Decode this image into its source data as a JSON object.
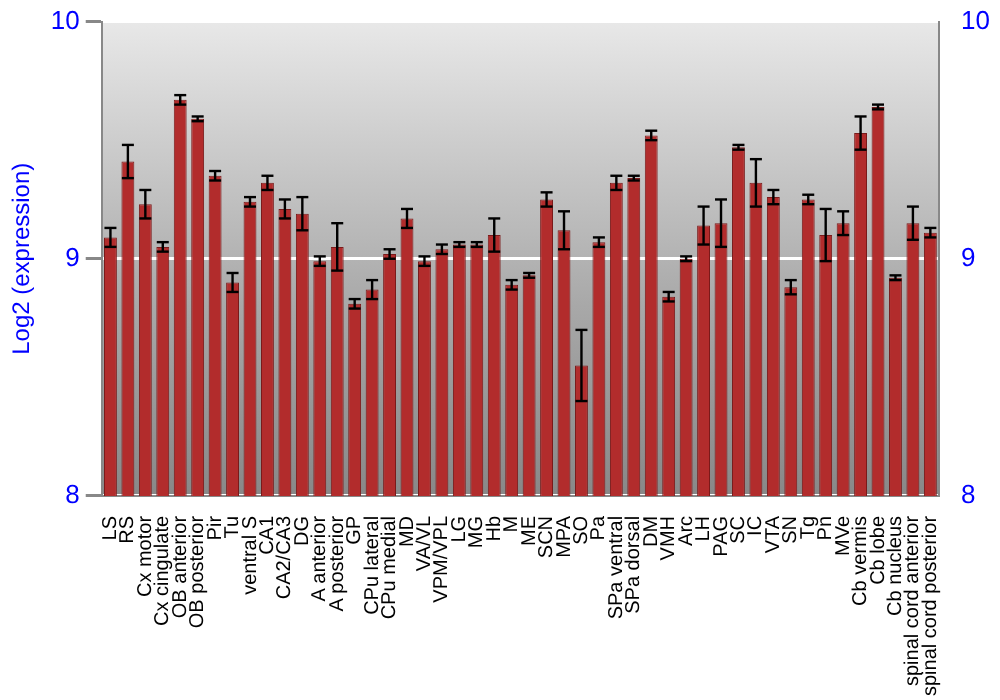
{
  "chart_data": {
    "type": "bar",
    "ylabel": "Log2 (expression)",
    "categories": [
      "LS",
      "RS",
      "Cx motor",
      "Cx cingulate",
      "OB anterior",
      "OB posterior",
      "Pir",
      "Tu",
      "ventral S",
      "CA1",
      "CA2/CA3",
      "DG",
      "A anterior",
      "A posterior",
      "GP",
      "CPu lateral",
      "CPu medial",
      "MD",
      "VA/VL",
      "VPM/VPL",
      "LG",
      "MG",
      "Hb",
      "M",
      "ME",
      "SCN",
      "MPA",
      "SO",
      "Pa",
      "SPa ventral",
      "SPa dorsal",
      "DM",
      "VMH",
      "Arc",
      "LH",
      "PAG",
      "SC",
      "IC",
      "VTA",
      "SN",
      "Tg",
      "Pn",
      "MVe",
      "Cb vermis",
      "Cb lobe",
      "Cb nucleus",
      "spinal cord anterior",
      "spinal cord posterior"
    ],
    "values": [
      9.09,
      9.41,
      9.23,
      9.05,
      9.67,
      9.59,
      9.35,
      8.9,
      9.24,
      9.32,
      9.21,
      9.19,
      8.99,
      9.05,
      8.81,
      8.87,
      9.02,
      9.17,
      8.99,
      9.04,
      9.06,
      9.06,
      9.1,
      8.89,
      8.93,
      9.25,
      9.12,
      8.55,
      9.07,
      9.32,
      9.34,
      9.52,
      8.84,
      9.0,
      9.14,
      9.15,
      9.47,
      9.32,
      9.26,
      8.88,
      9.25,
      9.1,
      9.15,
      9.53,
      9.64,
      8.92,
      9.15,
      9.11
    ],
    "errors": [
      0.04,
      0.07,
      0.06,
      0.02,
      0.02,
      0.01,
      0.02,
      0.04,
      0.02,
      0.03,
      0.04,
      0.07,
      0.02,
      0.1,
      0.02,
      0.04,
      0.02,
      0.04,
      0.02,
      0.02,
      0.01,
      0.01,
      0.07,
      0.02,
      0.01,
      0.03,
      0.08,
      0.15,
      0.02,
      0.03,
      0.01,
      0.02,
      0.02,
      0.01,
      0.08,
      0.1,
      0.01,
      0.1,
      0.03,
      0.03,
      0.02,
      0.11,
      0.05,
      0.07,
      0.01,
      0.01,
      0.07,
      0.02
    ],
    "color": "#b22c2c",
    "ylim": [
      8,
      10
    ],
    "yticks": [
      8,
      9,
      10
    ],
    "y2lim": [
      8,
      10
    ],
    "y2ticks": [
      8,
      9,
      10
    ],
    "grid": "y",
    "legend": false
  }
}
